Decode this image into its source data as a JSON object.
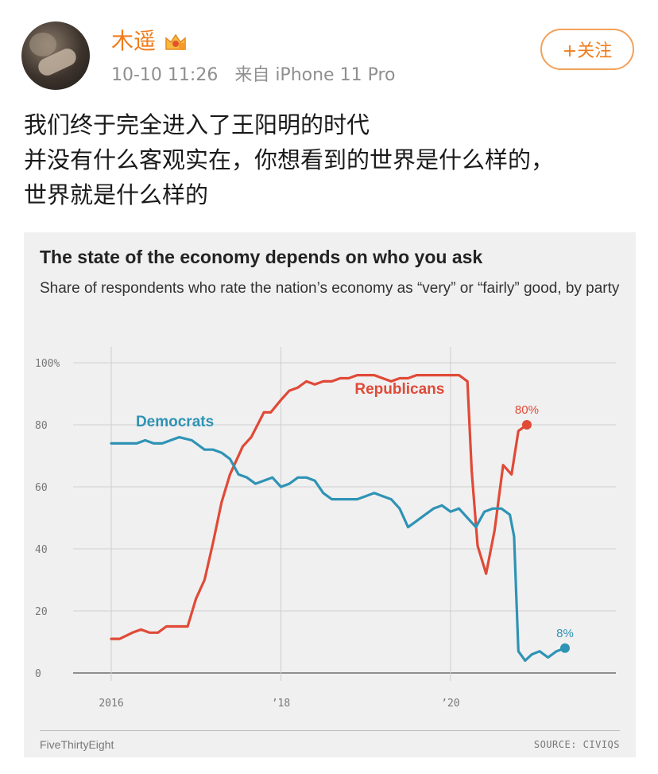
{
  "post": {
    "username": "木遥",
    "timestamp": "10-10 11:26",
    "source": "来自 iPhone 11 Pro",
    "follow_label": "+关注",
    "text_lines": [
      "我们终于完全进入了王阳明的时代",
      "并没有什么客观实在，你想看到的世界是什么样的，",
      "世界就是什么样的"
    ],
    "icons": {
      "avatar": "user-avatar",
      "vip": "vip-crown-icon"
    },
    "colors": {
      "username": "#f07c1c",
      "meta": "#8f8f8f"
    }
  },
  "chart_data": {
    "type": "line",
    "title": "The state of the economy depends on who you ask",
    "subtitle": "Share of respondents who rate the nation’s economy as “very” or “fairly” good, by party",
    "xlabel": "",
    "ylabel": "",
    "x_ticks": [
      "2016",
      "’18",
      "’20"
    ],
    "x_tick_values": [
      2016.0,
      2018.0,
      2020.0
    ],
    "y_ticks": [
      "100%",
      "80",
      "60",
      "40",
      "20",
      "0"
    ],
    "y_tick_values": [
      100,
      80,
      60,
      40,
      20,
      0
    ],
    "xlim": [
      2015.55,
      2021.95
    ],
    "ylim": [
      0,
      100
    ],
    "grid": true,
    "footer_left": "FiveThirtyEight",
    "footer_right": "SOURCE: CIVIQS",
    "series": [
      {
        "name": "Republicans",
        "color": "#e04a37",
        "end_label": "80%",
        "points": [
          [
            2016.0,
            11
          ],
          [
            2016.1,
            11
          ],
          [
            2016.25,
            13
          ],
          [
            2016.35,
            14
          ],
          [
            2016.45,
            13
          ],
          [
            2016.55,
            13
          ],
          [
            2016.65,
            15
          ],
          [
            2016.8,
            15
          ],
          [
            2016.9,
            15
          ],
          [
            2017.0,
            24
          ],
          [
            2017.1,
            30
          ],
          [
            2017.2,
            42
          ],
          [
            2017.3,
            55
          ],
          [
            2017.4,
            64
          ],
          [
            2017.55,
            73
          ],
          [
            2017.65,
            76
          ],
          [
            2017.8,
            84
          ],
          [
            2017.88,
            84
          ],
          [
            2018.0,
            88
          ],
          [
            2018.1,
            91
          ],
          [
            2018.2,
            92
          ],
          [
            2018.3,
            94
          ],
          [
            2018.4,
            93
          ],
          [
            2018.5,
            94
          ],
          [
            2018.6,
            94
          ],
          [
            2018.7,
            95
          ],
          [
            2018.8,
            95
          ],
          [
            2018.9,
            96
          ],
          [
            2019.1,
            96
          ],
          [
            2019.3,
            94
          ],
          [
            2019.4,
            95
          ],
          [
            2019.5,
            95
          ],
          [
            2019.6,
            96
          ],
          [
            2019.8,
            96
          ],
          [
            2020.0,
            96
          ],
          [
            2020.1,
            96
          ],
          [
            2020.2,
            94
          ],
          [
            2020.25,
            65
          ],
          [
            2020.32,
            41
          ],
          [
            2020.42,
            32
          ],
          [
            2020.52,
            46
          ],
          [
            2020.62,
            67
          ],
          [
            2020.72,
            64
          ],
          [
            2020.8,
            78
          ],
          [
            2020.9,
            80
          ]
        ]
      },
      {
        "name": "Democrats",
        "color": "#2f93b5",
        "end_label": "8%",
        "points": [
          [
            2016.0,
            74
          ],
          [
            2016.1,
            74
          ],
          [
            2016.2,
            74
          ],
          [
            2016.3,
            74
          ],
          [
            2016.4,
            75
          ],
          [
            2016.5,
            74
          ],
          [
            2016.6,
            74
          ],
          [
            2016.7,
            75
          ],
          [
            2016.8,
            76
          ],
          [
            2016.95,
            75
          ],
          [
            2017.1,
            72
          ],
          [
            2017.2,
            72
          ],
          [
            2017.3,
            71
          ],
          [
            2017.4,
            69
          ],
          [
            2017.5,
            64
          ],
          [
            2017.6,
            63
          ],
          [
            2017.7,
            61
          ],
          [
            2017.8,
            62
          ],
          [
            2017.9,
            63
          ],
          [
            2018.0,
            60
          ],
          [
            2018.1,
            61
          ],
          [
            2018.2,
            63
          ],
          [
            2018.3,
            63
          ],
          [
            2018.4,
            62
          ],
          [
            2018.5,
            58
          ],
          [
            2018.6,
            56
          ],
          [
            2018.7,
            56
          ],
          [
            2018.8,
            56
          ],
          [
            2018.9,
            56
          ],
          [
            2019.0,
            57
          ],
          [
            2019.1,
            58
          ],
          [
            2019.2,
            57
          ],
          [
            2019.3,
            56
          ],
          [
            2019.4,
            53
          ],
          [
            2019.5,
            47
          ],
          [
            2019.6,
            49
          ],
          [
            2019.7,
            51
          ],
          [
            2019.8,
            53
          ],
          [
            2019.9,
            54
          ],
          [
            2020.0,
            52
          ],
          [
            2020.1,
            53
          ],
          [
            2020.2,
            50
          ],
          [
            2020.3,
            47
          ],
          [
            2020.4,
            52
          ],
          [
            2020.5,
            53
          ],
          [
            2020.6,
            53
          ],
          [
            2020.7,
            51
          ],
          [
            2020.75,
            44
          ],
          [
            2020.8,
            7
          ],
          [
            2020.88,
            4
          ],
          [
            2020.96,
            6
          ],
          [
            2021.05,
            7
          ],
          [
            2021.15,
            5
          ],
          [
            2021.25,
            7
          ],
          [
            2021.35,
            8
          ]
        ]
      }
    ]
  }
}
